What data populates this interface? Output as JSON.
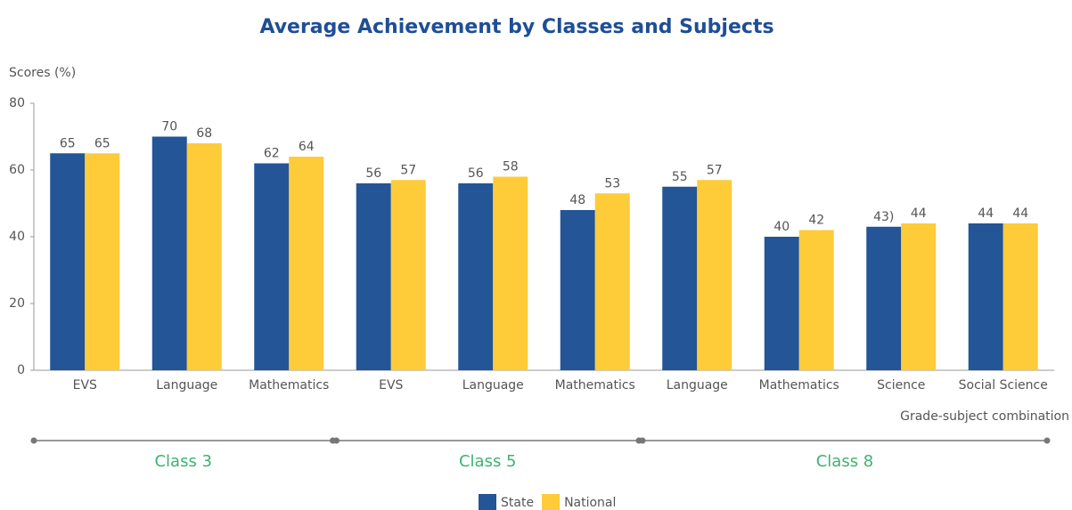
{
  "chart_data": {
    "type": "bar",
    "title": "Average Achievement by Classes and Subjects",
    "y_label": "Scores (%)",
    "x_label": "Grade-subject combination",
    "categories": [
      "EVS",
      "Language",
      "Mathematics",
      "EVS",
      "Language",
      "Mathematics",
      "Language",
      "Mathematics",
      "Science",
      "Social Science"
    ],
    "groups": [
      {
        "label": "Class 3",
        "size": 3
      },
      {
        "label": "Class 5",
        "size": 3
      },
      {
        "label": "Class 8",
        "size": 4
      }
    ],
    "series": [
      {
        "name": "State",
        "color": "#235597",
        "values": [
          65,
          70,
          62,
          56,
          56,
          48,
          55,
          40,
          43,
          44
        ],
        "value_labels": [
          "65",
          "70",
          "62",
          "56",
          "56",
          "48",
          "55",
          "40",
          "43)",
          "44"
        ]
      },
      {
        "name": "National",
        "color": "#fecb39",
        "values": [
          65,
          68,
          64,
          57,
          58,
          53,
          57,
          42,
          44,
          44
        ]
      }
    ],
    "ylim": [
      0,
      80
    ],
    "yticks": [
      0,
      20,
      40,
      60,
      80
    ],
    "grid": false,
    "legend": "bottom"
  }
}
